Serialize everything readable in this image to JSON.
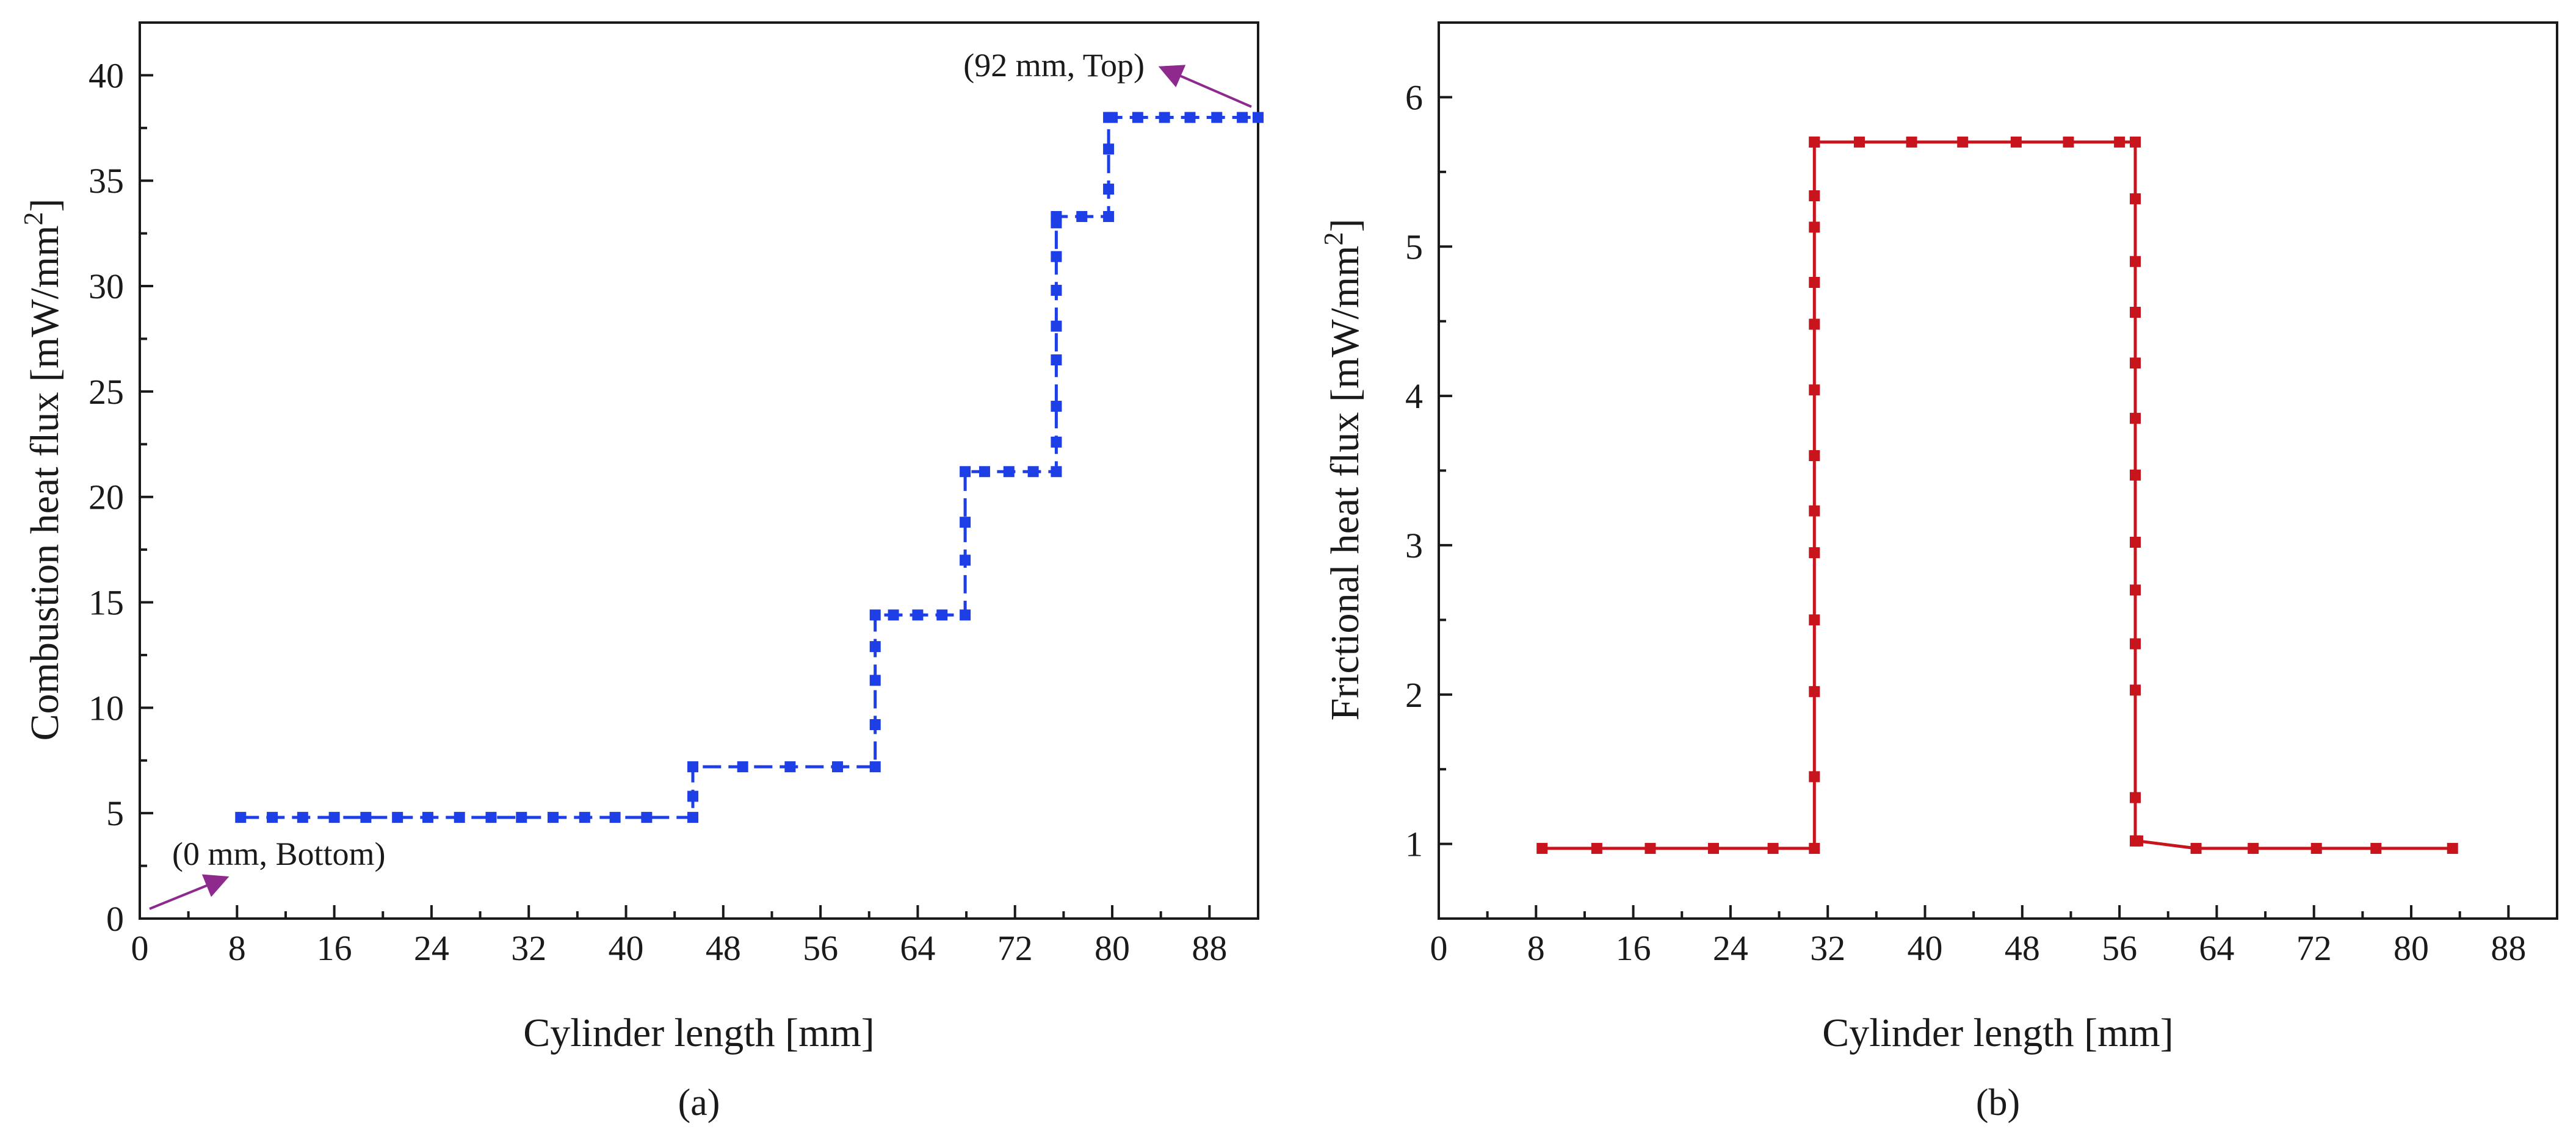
{
  "colors": {
    "series_a": "#1f3fe6",
    "series_b": "#c8141c",
    "annotation": "#8e2a8e",
    "axis": "#1a1a1a"
  },
  "chart_data": [
    {
      "type": "line",
      "panel_label": "(a)",
      "xlabel": "Cylinder length [mm]",
      "ylabel": "Combustion heat flux [mW/mm",
      "ylabel_sup": "2",
      "ylabel_close": "]",
      "xlim": [
        0,
        92
      ],
      "ylim": [
        0,
        42.5
      ],
      "xticks": [
        "0",
        "8",
        "16",
        "24",
        "32",
        "40",
        "48",
        "56",
        "64",
        "72",
        "80",
        "88"
      ],
      "yticks": [
        "0",
        "5",
        "10",
        "15",
        "20",
        "25",
        "30",
        "35",
        "40"
      ],
      "annotations": [
        "(92 mm, Top)",
        "(0 mm, Bottom)"
      ],
      "series": [
        {
          "name": "Combustion heat flux",
          "x": [
            8.3,
            10.9,
            13.4,
            16,
            18.6,
            21.2,
            23.7,
            26.3,
            28.9,
            31.4,
            34,
            36.6,
            39.1,
            41.7,
            45.5,
            45.5,
            45.5,
            49.6,
            53.5,
            57.4,
            60.5,
            60.5,
            60.5,
            60.5,
            60.5,
            62,
            64,
            66,
            67.9,
            67.9,
            67.9,
            67.9,
            69.5,
            71.5,
            73.5,
            75.4,
            75.4,
            75.4,
            75.4,
            75.4,
            75.4,
            75.4,
            75.4,
            75.4,
            77.5,
            79.7,
            79.7,
            79.7,
            79.7,
            80,
            82.1,
            84.3,
            86.4,
            88.6,
            90.7,
            92
          ],
          "y": [
            4.8,
            4.8,
            4.8,
            4.8,
            4.8,
            4.8,
            4.8,
            4.8,
            4.8,
            4.8,
            4.8,
            4.8,
            4.8,
            4.8,
            4.8,
            5.8,
            7.2,
            7.2,
            7.2,
            7.2,
            7.2,
            9.2,
            11.3,
            12.9,
            14.4,
            14.4,
            14.4,
            14.4,
            14.4,
            17,
            18.8,
            21.2,
            21.2,
            21.2,
            21.2,
            21.2,
            22.6,
            24.3,
            26.5,
            28.1,
            29.8,
            31.4,
            33,
            33.3,
            33.3,
            33.3,
            34.6,
            36.5,
            38,
            38,
            38,
            38,
            38,
            38,
            38,
            38
          ]
        }
      ]
    },
    {
      "type": "line",
      "panel_label": "(b)",
      "xlabel": "Cylinder length [mm]",
      "ylabel": "Frictional heat flux [mW/mm",
      "ylabel_sup": "2",
      "ylabel_close": "]",
      "xlim": [
        0,
        92
      ],
      "ylim": [
        0.5,
        6.5
      ],
      "xticks": [
        "0",
        "8",
        "16",
        "24",
        "32",
        "40",
        "48",
        "56",
        "64",
        "72",
        "80",
        "88"
      ],
      "yticks": [
        "1",
        "2",
        "3",
        "4",
        "5",
        "6"
      ],
      "series": [
        {
          "name": "Frictional heat flux",
          "x": [
            8.5,
            13,
            17.4,
            22.6,
            27.5,
            30.9,
            30.9,
            30.9,
            30.9,
            30.9,
            30.9,
            30.9,
            30.9,
            30.9,
            30.9,
            30.9,
            30.9,
            30.9,
            30.9,
            34.6,
            38.9,
            43.1,
            47.5,
            51.8,
            56,
            57.3,
            57.3,
            57.3,
            57.3,
            57.3,
            57.3,
            57.3,
            57.3,
            57.3,
            57.3,
            57.3,
            57.3,
            57.3,
            57.3,
            57.5,
            62.3,
            67,
            72.2,
            77.1,
            83.4
          ],
          "y": [
            0.97,
            0.97,
            0.97,
            0.97,
            0.97,
            0.97,
            1.45,
            2.02,
            2.5,
            2.95,
            3.23,
            3.6,
            4.04,
            4.48,
            4.76,
            5.13,
            5.34,
            5.7,
            5.7,
            5.7,
            5.7,
            5.7,
            5.7,
            5.7,
            5.7,
            5.7,
            5.32,
            4.9,
            4.56,
            4.22,
            3.85,
            3.47,
            3.02,
            2.7,
            2.34,
            2.03,
            1.31,
            1.02,
            1.02,
            1.02,
            0.97,
            0.97,
            0.97,
            0.97,
            0.97
          ]
        }
      ]
    }
  ]
}
